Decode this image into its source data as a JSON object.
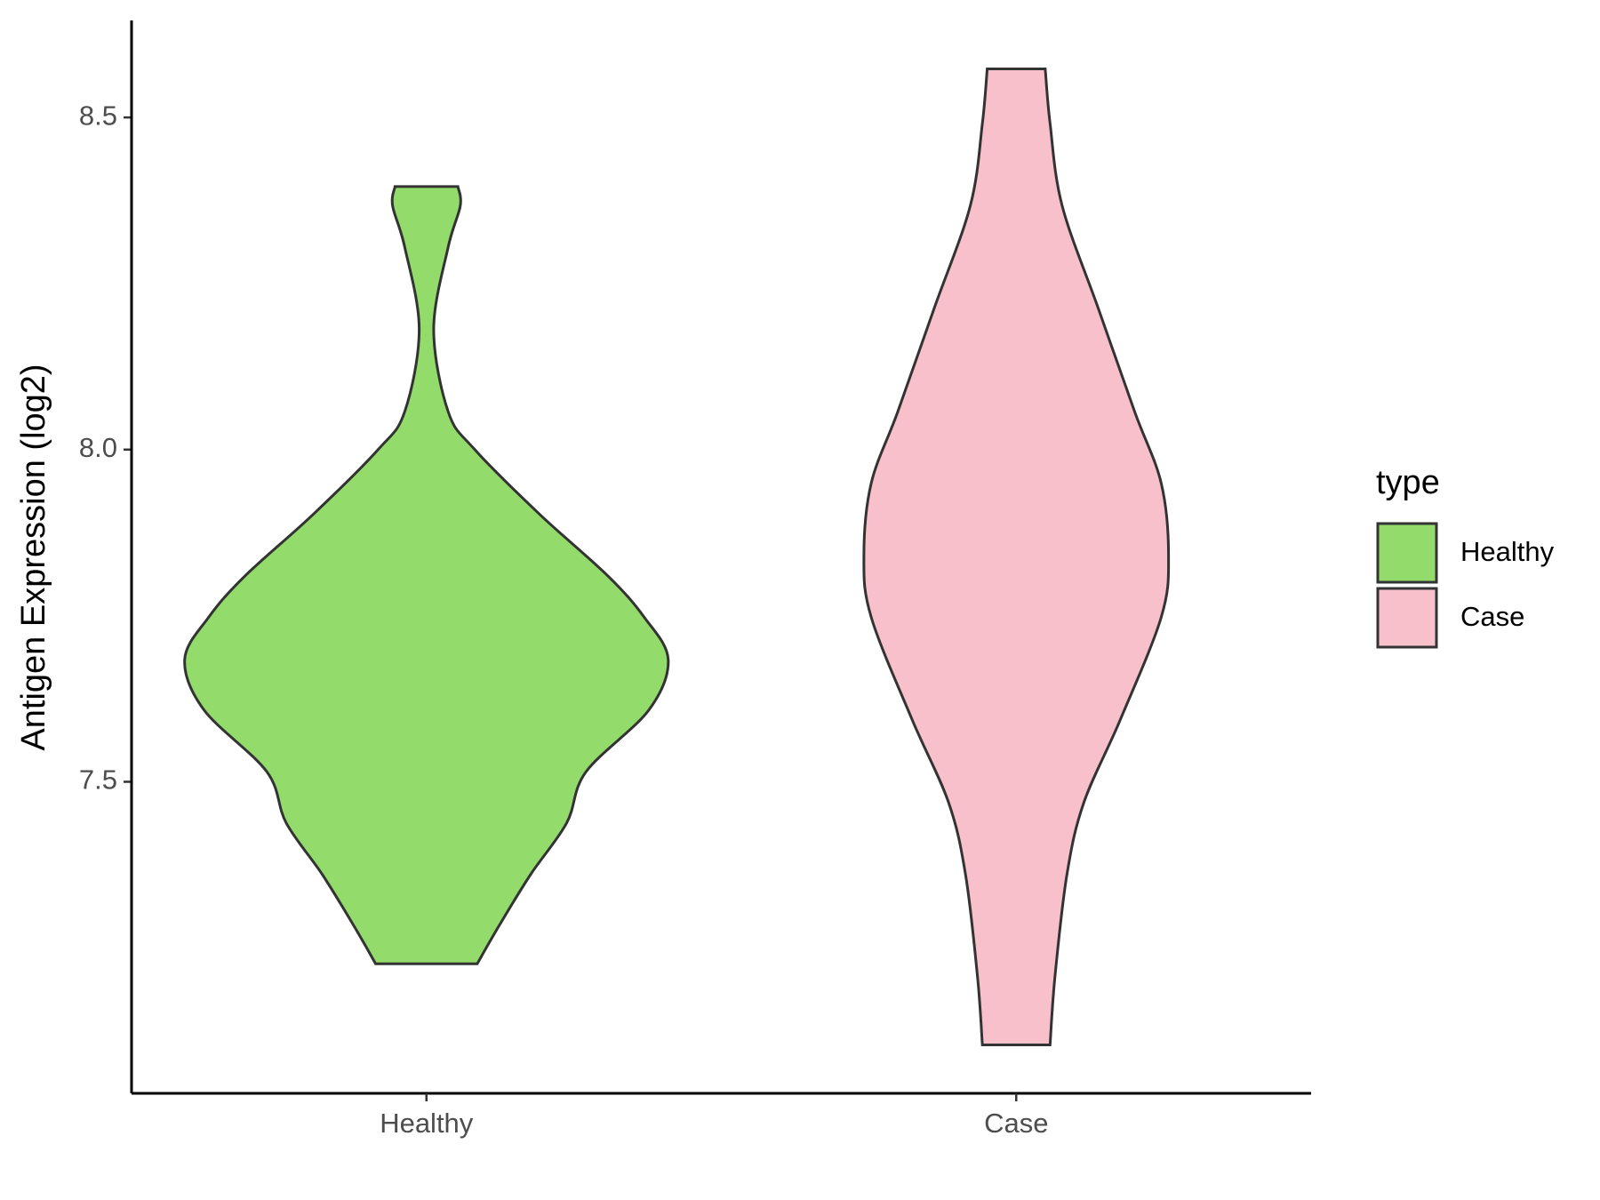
{
  "chart_data": {
    "type": "violin",
    "y_label": "Antigen Expression (log2)",
    "categories": [
      "Healthy",
      "Case"
    ],
    "legend_title": "type",
    "legend": "right",
    "ylim": [
      7.031,
      8.646
    ],
    "yticks": [
      {
        "value": 7.5,
        "label": "7.5"
      },
      {
        "value": 8.0,
        "label": "8.0"
      },
      {
        "value": 8.5,
        "label": "8.5"
      }
    ],
    "series": [
      {
        "name": "Healthy",
        "color": "#93dc6b",
        "y": [
          8.396,
          8.367,
          8.305,
          8.181,
          8.057,
          8.0,
          7.902,
          7.81,
          7.748,
          7.684,
          7.608,
          7.515,
          7.438,
          7.36,
          7.283,
          7.226
        ],
        "density": [
          0.13,
          0.14,
          0.09,
          0.03,
          0.09,
          0.2,
          0.47,
          0.75,
          0.9,
          1,
          0.92,
          0.66,
          0.58,
          0.43,
          0.3,
          0.21
        ]
      },
      {
        "name": "Case",
        "color": "#f7c0cb",
        "y": [
          8.573,
          8.491,
          8.367,
          8.212,
          8.057,
          7.949,
          7.84,
          7.748,
          7.593,
          7.469,
          7.361,
          7.206,
          7.104
        ],
        "density": [
          0.12,
          0.14,
          0.19,
          0.34,
          0.49,
          0.6,
          0.63,
          0.6,
          0.43,
          0.28,
          0.21,
          0.16,
          0.14
        ]
      }
    ]
  }
}
